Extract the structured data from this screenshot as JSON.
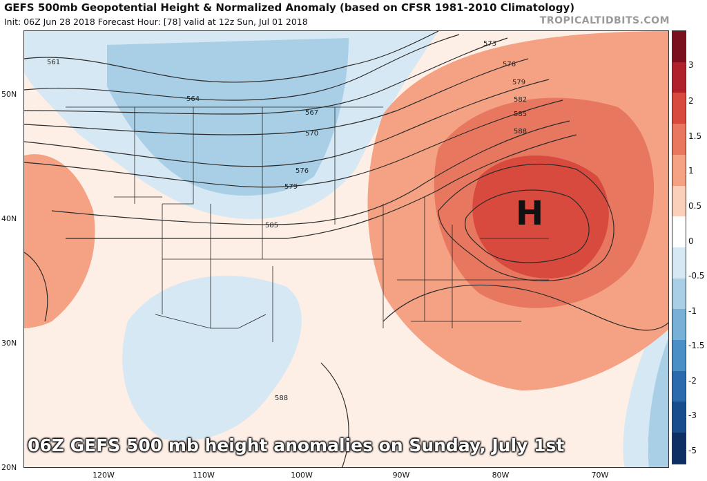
{
  "title": "GEFS 500mb Geopotential Height & Normalized Anomaly (based on CFSR 1981-2010 Climatology)",
  "subtitle": "Init: 06Z Jun 28 2018   Forecast Hour: [78]   valid at 12z Sun, Jul 01 2018",
  "brand": "TROPICALTIDBITS.COM",
  "caption": "06Z GEFS 500 mb height anomalies on Sunday, July 1st",
  "high_label": "H",
  "lat_labels": [
    "50N",
    "40N",
    "30N",
    "20N"
  ],
  "lon_labels": [
    "120W",
    "110W",
    "100W",
    "90W",
    "80W",
    "70W"
  ],
  "contour_labels": [
    "561",
    "564",
    "567",
    "570",
    "573",
    "576",
    "579",
    "582",
    "585",
    "588"
  ],
  "colorbar": {
    "ticks": [
      "3",
      "2",
      "1.5",
      "1",
      "0.5",
      "0",
      "-0.5",
      "-1",
      "-1.5",
      "-2",
      "-3",
      "-5"
    ],
    "colors": [
      "#7a0f1e",
      "#b0202a",
      "#d84a3e",
      "#e8775f",
      "#f4a283",
      "#fbd0bb",
      "#ffffff",
      "#d6e8f3",
      "#a9cfe6",
      "#78b1d8",
      "#4a8fc6",
      "#2a6aad",
      "#184c8c",
      "#0d2f63"
    ]
  },
  "colors": {
    "border": "#333333",
    "contour": "#2b2b2b"
  }
}
